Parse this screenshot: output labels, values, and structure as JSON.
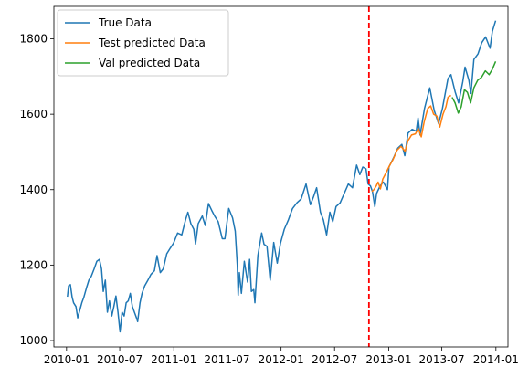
{
  "chart_data": {
    "type": "line",
    "title": "",
    "xlabel": "",
    "ylabel": "",
    "x_range": [
      "2009-11-19",
      "2014-02-11"
    ],
    "ylim": [
      983,
      1886
    ],
    "grid": false,
    "legend_position": "top-left",
    "x_ticks": [
      {
        "date": "2010-01-01",
        "label": "2010-01"
      },
      {
        "date": "2010-07-01",
        "label": "2010-07"
      },
      {
        "date": "2011-01-01",
        "label": "2011-01"
      },
      {
        "date": "2011-07-01",
        "label": "2011-07"
      },
      {
        "date": "2012-01-01",
        "label": "2012-01"
      },
      {
        "date": "2012-07-01",
        "label": "2012-07"
      },
      {
        "date": "2013-01-01",
        "label": "2013-01"
      },
      {
        "date": "2013-07-01",
        "label": "2013-07"
      },
      {
        "date": "2014-01-01",
        "label": "2014-01"
      }
    ],
    "y_ticks": [
      1000,
      1200,
      1400,
      1600,
      1800
    ],
    "split_line": {
      "date": "2012-10-26",
      "color": "#ff0000",
      "style": "dashed"
    },
    "series": [
      {
        "name": "True Data",
        "color": "#1f77b4",
        "points": [
          [
            "2010-01-04",
            1116
          ],
          [
            "2010-01-08",
            1145
          ],
          [
            "2010-01-14",
            1148
          ],
          [
            "2010-01-20",
            1115
          ],
          [
            "2010-01-25",
            1100
          ],
          [
            "2010-02-02",
            1090
          ],
          [
            "2010-02-08",
            1060
          ],
          [
            "2010-02-15",
            1080
          ],
          [
            "2010-02-22",
            1100
          ],
          [
            "2010-03-01",
            1115
          ],
          [
            "2010-03-10",
            1140
          ],
          [
            "2010-03-18",
            1160
          ],
          [
            "2010-03-26",
            1170
          ],
          [
            "2010-04-05",
            1190
          ],
          [
            "2010-04-14",
            1210
          ],
          [
            "2010-04-23",
            1215
          ],
          [
            "2010-04-30",
            1190
          ],
          [
            "2010-05-06",
            1130
          ],
          [
            "2010-05-13",
            1160
          ],
          [
            "2010-05-20",
            1075
          ],
          [
            "2010-05-27",
            1105
          ],
          [
            "2010-06-04",
            1065
          ],
          [
            "2010-06-11",
            1090
          ],
          [
            "2010-06-18",
            1118
          ],
          [
            "2010-06-25",
            1075
          ],
          [
            "2010-07-02",
            1023
          ],
          [
            "2010-07-09",
            1075
          ],
          [
            "2010-07-16",
            1065
          ],
          [
            "2010-07-23",
            1100
          ],
          [
            "2010-07-30",
            1105
          ],
          [
            "2010-08-06",
            1125
          ],
          [
            "2010-08-13",
            1090
          ],
          [
            "2010-08-20",
            1075
          ],
          [
            "2010-08-27",
            1060
          ],
          [
            "2010-08-31",
            1050
          ],
          [
            "2010-09-08",
            1100
          ],
          [
            "2010-09-15",
            1125
          ],
          [
            "2010-09-24",
            1145
          ],
          [
            "2010-10-05",
            1160
          ],
          [
            "2010-10-15",
            1175
          ],
          [
            "2010-10-27",
            1185
          ],
          [
            "2010-11-05",
            1225
          ],
          [
            "2010-11-16",
            1180
          ],
          [
            "2010-11-26",
            1190
          ],
          [
            "2010-12-08",
            1230
          ],
          [
            "2010-12-20",
            1245
          ],
          [
            "2010-12-31",
            1258
          ],
          [
            "2011-01-14",
            1285
          ],
          [
            "2011-01-28",
            1280
          ],
          [
            "2011-02-10",
            1320
          ],
          [
            "2011-02-18",
            1340
          ],
          [
            "2011-02-28",
            1310
          ],
          [
            "2011-03-10",
            1295
          ],
          [
            "2011-03-16",
            1256
          ],
          [
            "2011-03-25",
            1310
          ],
          [
            "2011-04-08",
            1330
          ],
          [
            "2011-04-18",
            1305
          ],
          [
            "2011-04-29",
            1363
          ],
          [
            "2011-05-10",
            1345
          ],
          [
            "2011-05-20",
            1330
          ],
          [
            "2011-06-01",
            1315
          ],
          [
            "2011-06-15",
            1270
          ],
          [
            "2011-06-24",
            1270
          ],
          [
            "2011-07-07",
            1350
          ],
          [
            "2011-07-20",
            1325
          ],
          [
            "2011-07-29",
            1290
          ],
          [
            "2011-08-05",
            1200
          ],
          [
            "2011-08-08",
            1120
          ],
          [
            "2011-08-12",
            1180
          ],
          [
            "2011-08-19",
            1125
          ],
          [
            "2011-08-29",
            1210
          ],
          [
            "2011-09-09",
            1155
          ],
          [
            "2011-09-16",
            1215
          ],
          [
            "2011-09-22",
            1130
          ],
          [
            "2011-09-30",
            1135
          ],
          [
            "2011-10-04",
            1100
          ],
          [
            "2011-10-14",
            1225
          ],
          [
            "2011-10-27",
            1285
          ],
          [
            "2011-11-04",
            1255
          ],
          [
            "2011-11-14",
            1250
          ],
          [
            "2011-11-25",
            1160
          ],
          [
            "2011-12-07",
            1260
          ],
          [
            "2011-12-19",
            1205
          ],
          [
            "2011-12-30",
            1258
          ],
          [
            "2012-01-12",
            1295
          ],
          [
            "2012-01-26",
            1320
          ],
          [
            "2012-02-09",
            1350
          ],
          [
            "2012-02-24",
            1365
          ],
          [
            "2012-03-09",
            1375
          ],
          [
            "2012-03-26",
            1415
          ],
          [
            "2012-04-10",
            1360
          ],
          [
            "2012-04-20",
            1380
          ],
          [
            "2012-05-01",
            1405
          ],
          [
            "2012-05-14",
            1340
          ],
          [
            "2012-05-24",
            1320
          ],
          [
            "2012-06-04",
            1280
          ],
          [
            "2012-06-15",
            1340
          ],
          [
            "2012-06-25",
            1315
          ],
          [
            "2012-07-06",
            1355
          ],
          [
            "2012-07-20",
            1365
          ],
          [
            "2012-08-03",
            1390
          ],
          [
            "2012-08-17",
            1415
          ],
          [
            "2012-08-31",
            1405
          ],
          [
            "2012-09-14",
            1465
          ],
          [
            "2012-09-25",
            1440
          ],
          [
            "2012-10-05",
            1460
          ],
          [
            "2012-10-16",
            1455
          ],
          [
            "2012-10-23",
            1415
          ],
          [
            "2012-10-31",
            1410
          ],
          [
            "2012-11-07",
            1395
          ],
          [
            "2012-11-15",
            1355
          ],
          [
            "2012-11-21",
            1390
          ],
          [
            "2012-12-03",
            1410
          ],
          [
            "2012-12-14",
            1420
          ],
          [
            "2012-12-28",
            1400
          ],
          [
            "2013-01-02",
            1460
          ],
          [
            "2013-01-18",
            1485
          ],
          [
            "2013-02-01",
            1510
          ],
          [
            "2013-02-15",
            1520
          ],
          [
            "2013-02-25",
            1490
          ],
          [
            "2013-03-08",
            1550
          ],
          [
            "2013-03-22",
            1560
          ],
          [
            "2013-04-05",
            1555
          ],
          [
            "2013-04-11",
            1590
          ],
          [
            "2013-04-18",
            1545
          ],
          [
            "2013-05-03",
            1615
          ],
          [
            "2013-05-21",
            1670
          ],
          [
            "2013-06-05",
            1610
          ],
          [
            "2013-06-20",
            1575
          ],
          [
            "2013-07-03",
            1615
          ],
          [
            "2013-07-22",
            1695
          ],
          [
            "2013-08-01",
            1705
          ],
          [
            "2013-08-15",
            1660
          ],
          [
            "2013-08-27",
            1630
          ],
          [
            "2013-09-10",
            1685
          ],
          [
            "2013-09-18",
            1725
          ],
          [
            "2013-10-01",
            1690
          ],
          [
            "2013-10-08",
            1655
          ],
          [
            "2013-10-18",
            1745
          ],
          [
            "2013-11-01",
            1760
          ],
          [
            "2013-11-14",
            1790
          ],
          [
            "2013-11-27",
            1805
          ],
          [
            "2013-12-12",
            1775
          ],
          [
            "2013-12-20",
            1820
          ],
          [
            "2013-12-31",
            1848
          ]
        ]
      },
      {
        "name": "Test predicted Data",
        "color": "#ff7f0e",
        "points": [
          [
            "2012-11-05",
            1395
          ],
          [
            "2012-11-12",
            1400
          ],
          [
            "2012-11-20",
            1410
          ],
          [
            "2012-11-26",
            1420
          ],
          [
            "2012-12-04",
            1402
          ],
          [
            "2012-12-12",
            1428
          ],
          [
            "2012-12-20",
            1440
          ],
          [
            "2013-01-03",
            1462
          ],
          [
            "2013-01-16",
            1480
          ],
          [
            "2013-01-30",
            1505
          ],
          [
            "2013-02-12",
            1515
          ],
          [
            "2013-02-26",
            1502
          ],
          [
            "2013-03-08",
            1530
          ],
          [
            "2013-03-20",
            1545
          ],
          [
            "2013-04-02",
            1548
          ],
          [
            "2013-04-12",
            1562
          ],
          [
            "2013-04-22",
            1540
          ],
          [
            "2013-05-02",
            1580
          ],
          [
            "2013-05-14",
            1615
          ],
          [
            "2013-05-24",
            1622
          ],
          [
            "2013-06-03",
            1600
          ],
          [
            "2013-06-14",
            1595
          ],
          [
            "2013-06-24",
            1566
          ],
          [
            "2013-07-05",
            1600
          ],
          [
            "2013-07-15",
            1620
          ],
          [
            "2013-07-22",
            1645
          ],
          [
            "2013-08-01",
            1650
          ]
        ]
      },
      {
        "name": "Val predicted Data",
        "color": "#2ca02c",
        "points": [
          [
            "2013-08-05",
            1645
          ],
          [
            "2013-08-15",
            1630
          ],
          [
            "2013-08-26",
            1603
          ],
          [
            "2013-09-05",
            1620
          ],
          [
            "2013-09-16",
            1665
          ],
          [
            "2013-09-26",
            1658
          ],
          [
            "2013-10-07",
            1630
          ],
          [
            "2013-10-18",
            1670
          ],
          [
            "2013-10-31",
            1690
          ],
          [
            "2013-11-13",
            1698
          ],
          [
            "2013-11-26",
            1715
          ],
          [
            "2013-12-09",
            1705
          ],
          [
            "2013-12-19",
            1718
          ],
          [
            "2013-12-31",
            1740
          ]
        ]
      }
    ]
  }
}
